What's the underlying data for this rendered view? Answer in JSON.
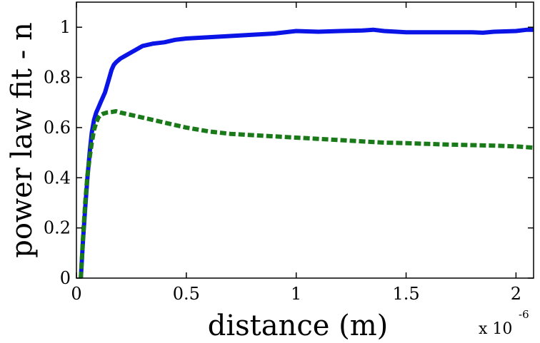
{
  "chart_data": {
    "type": "line",
    "title": "",
    "xlabel": "distance (m)",
    "ylabel": "power law fit - n",
    "x_exponent_base": "x 10",
    "x_exponent_power": "-6",
    "xlim": [
      0,
      2.08
    ],
    "ylim": [
      0,
      1.1
    ],
    "xticks": [
      0,
      0.5,
      1,
      1.5,
      2
    ],
    "xtick_labels": [
      "0",
      "0.5",
      "1",
      "1.5",
      "2"
    ],
    "yticks": [
      0,
      0.2,
      0.4,
      0.6,
      0.8,
      1
    ],
    "ytick_labels": [
      "0",
      "0.2",
      "0.4",
      "0.6",
      "0.8",
      "1"
    ],
    "grid": false,
    "series": [
      {
        "name": "solid-blue",
        "color": "#0a14e6",
        "style": "solid",
        "x": [
          0.02,
          0.03,
          0.04,
          0.05,
          0.06,
          0.07,
          0.08,
          0.09,
          0.1,
          0.11,
          0.12,
          0.13,
          0.14,
          0.15,
          0.16,
          0.17,
          0.18,
          0.2,
          0.22,
          0.25,
          0.28,
          0.3,
          0.35,
          0.4,
          0.45,
          0.5,
          0.6,
          0.7,
          0.8,
          0.9,
          1.0,
          1.1,
          1.2,
          1.3,
          1.35,
          1.4,
          1.5,
          1.6,
          1.7,
          1.8,
          1.85,
          1.9,
          2.0,
          2.05,
          2.08
        ],
        "y": [
          0.0,
          0.15,
          0.28,
          0.4,
          0.5,
          0.58,
          0.63,
          0.66,
          0.68,
          0.7,
          0.72,
          0.74,
          0.77,
          0.8,
          0.83,
          0.85,
          0.86,
          0.875,
          0.885,
          0.9,
          0.915,
          0.925,
          0.935,
          0.94,
          0.95,
          0.955,
          0.96,
          0.965,
          0.97,
          0.975,
          0.985,
          0.982,
          0.985,
          0.987,
          0.99,
          0.985,
          0.98,
          0.98,
          0.98,
          0.98,
          0.978,
          0.982,
          0.985,
          0.99,
          0.99
        ]
      },
      {
        "name": "dashed-green",
        "color": "#1a7a1a",
        "style": "dashed",
        "x": [
          0.02,
          0.03,
          0.04,
          0.05,
          0.06,
          0.07,
          0.08,
          0.09,
          0.1,
          0.11,
          0.12,
          0.14,
          0.16,
          0.18,
          0.2,
          0.25,
          0.3,
          0.4,
          0.5,
          0.6,
          0.7,
          0.8,
          0.9,
          1.0,
          1.1,
          1.2,
          1.3,
          1.4,
          1.5,
          1.6,
          1.7,
          1.8,
          1.9,
          2.0,
          2.08
        ],
        "y": [
          0.0,
          0.16,
          0.3,
          0.41,
          0.48,
          0.54,
          0.59,
          0.62,
          0.64,
          0.65,
          0.655,
          0.66,
          0.662,
          0.665,
          0.66,
          0.65,
          0.64,
          0.62,
          0.6,
          0.585,
          0.575,
          0.57,
          0.565,
          0.56,
          0.555,
          0.55,
          0.545,
          0.54,
          0.538,
          0.535,
          0.532,
          0.53,
          0.528,
          0.525,
          0.52
        ]
      }
    ]
  }
}
